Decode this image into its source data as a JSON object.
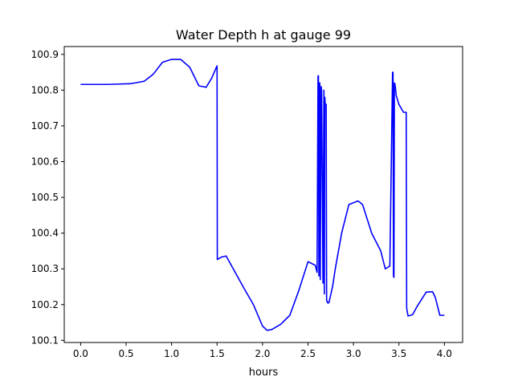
{
  "chart_data": {
    "type": "line",
    "title": "Water Depth h at gauge 99",
    "xlabel": "hours",
    "ylabel": "",
    "xlim": [
      -0.18,
      4.2
    ],
    "ylim": [
      100.094,
      100.922
    ],
    "xticks": [
      0.0,
      0.5,
      1.0,
      1.5,
      2.0,
      2.5,
      3.0,
      3.5,
      4.0
    ],
    "xtick_labels": [
      "0.0",
      "0.5",
      "1.0",
      "1.5",
      "2.0",
      "2.5",
      "3.0",
      "3.5",
      "4.0"
    ],
    "yticks": [
      100.1,
      100.2,
      100.3,
      100.4,
      100.5,
      100.6,
      100.7,
      100.8,
      100.9
    ],
    "ytick_labels": [
      "100.1",
      "100.2",
      "100.3",
      "100.4",
      "100.5",
      "100.6",
      "100.7",
      "100.8",
      "100.9"
    ],
    "grid": false,
    "legend": "none",
    "series": [
      {
        "color": "#0000ff",
        "x": [
          0.0,
          0.3,
          0.55,
          0.7,
          0.8,
          0.9,
          1.0,
          1.1,
          1.2,
          1.3,
          1.38,
          1.44,
          1.5,
          1.503,
          1.55,
          1.6,
          1.7,
          1.8,
          1.9,
          1.95,
          2.0,
          2.05,
          2.1,
          2.2,
          2.3,
          2.4,
          2.5,
          2.58,
          2.6,
          2.61,
          2.615,
          2.62,
          2.625,
          2.63,
          2.635,
          2.645,
          2.65,
          2.665,
          2.675,
          2.68,
          2.685,
          2.69,
          2.7,
          2.705,
          2.71,
          2.715,
          2.73,
          2.77,
          2.8,
          2.87,
          2.95,
          3.05,
          3.1,
          3.15,
          3.2,
          3.3,
          3.35,
          3.4,
          3.43,
          3.435,
          3.44,
          3.445,
          3.45,
          3.455,
          3.46,
          3.47,
          3.5,
          3.55,
          3.58,
          3.585,
          3.6,
          3.65,
          3.7,
          3.8,
          3.87,
          3.9,
          3.95,
          4.0
        ],
        "y": [
          100.816,
          100.816,
          100.818,
          100.825,
          100.845,
          100.878,
          100.886,
          100.886,
          100.864,
          100.812,
          100.808,
          100.833,
          100.868,
          100.326,
          100.333,
          100.336,
          100.29,
          100.244,
          100.2,
          100.17,
          100.14,
          100.128,
          100.13,
          100.145,
          100.17,
          100.24,
          100.32,
          100.31,
          100.29,
          100.84,
          100.84,
          100.28,
          100.82,
          100.82,
          100.27,
          100.81,
          100.8,
          100.26,
          100.8,
          100.23,
          100.78,
          100.76,
          100.76,
          100.21,
          100.21,
          100.205,
          100.205,
          100.25,
          100.3,
          100.4,
          100.48,
          100.49,
          100.48,
          100.44,
          100.4,
          100.35,
          100.3,
          100.308,
          100.85,
          100.85,
          100.28,
          100.276,
          100.82,
          100.818,
          100.81,
          100.785,
          100.76,
          100.738,
          100.738,
          100.19,
          100.168,
          100.172,
          100.195,
          100.235,
          100.236,
          100.22,
          100.17,
          100.17
        ]
      }
    ]
  }
}
